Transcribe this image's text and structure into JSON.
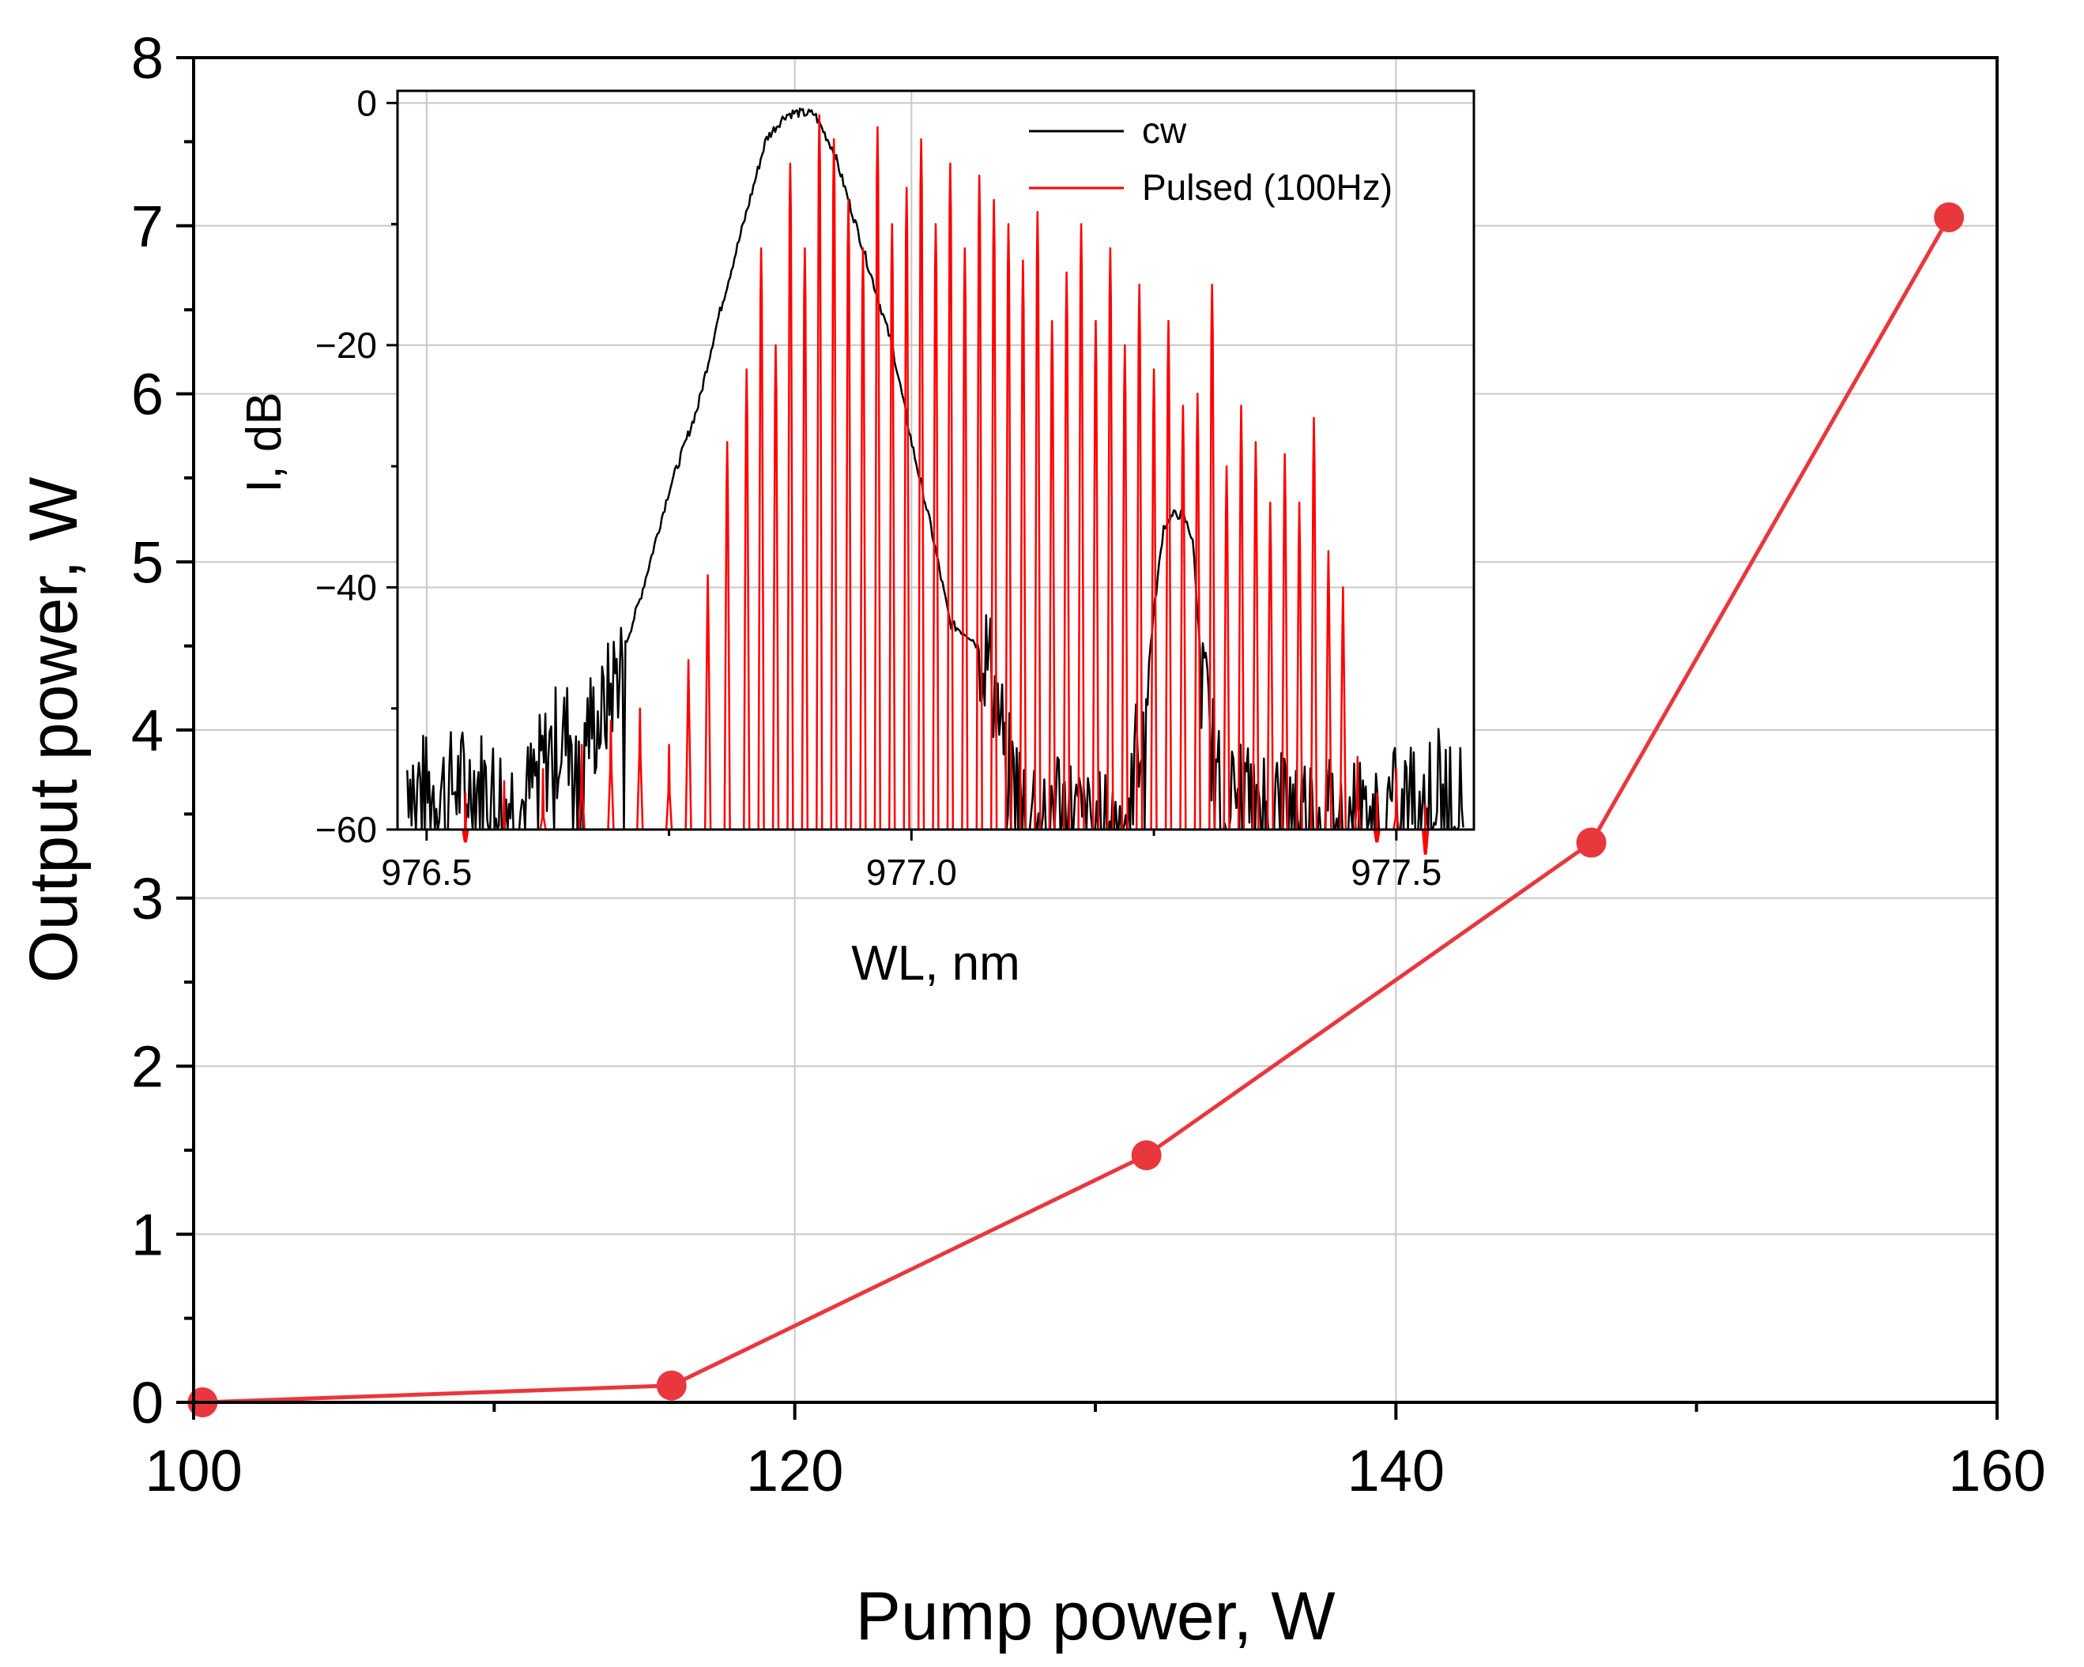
{
  "chart_data": [
    {
      "type": "line",
      "xlabel": "Pump power, W",
      "ylabel": "Output power, W",
      "xlim": [
        100,
        160
      ],
      "ylim": [
        0,
        8
      ],
      "x_ticks": [
        100,
        120,
        140,
        160
      ],
      "y_ticks": [
        0,
        1,
        2,
        3,
        4,
        5,
        6,
        7,
        8
      ],
      "grid": true,
      "series": [
        {
          "name": "Output power",
          "color": "#e8383d",
          "marker": "circle",
          "x": [
            100.3,
            115.9,
            131.7,
            146.5,
            158.4
          ],
          "y": [
            0.0,
            0.1,
            1.47,
            3.33,
            7.05
          ]
        }
      ]
    },
    {
      "type": "line",
      "xlabel": "WL, nm",
      "ylabel": "I, dB",
      "xlim": [
        976.47,
        977.58
      ],
      "ylim": [
        -60,
        1
      ],
      "x_ticks": [
        "976.5",
        "977.0",
        "977.5"
      ],
      "y_ticks": [
        -60,
        -40,
        -20,
        0
      ],
      "grid": true,
      "legend_position": "top-right",
      "series": [
        {
          "name": "cw",
          "color": "#000000",
          "x": [
            976.48,
            976.5,
            976.55,
            976.6,
            976.63,
            976.65,
            976.68,
            976.7,
            976.72,
            976.75,
            976.78,
            976.8,
            976.83,
            976.85,
            976.87,
            976.88,
            976.9,
            976.92,
            976.95,
            976.98,
            977.0,
            977.02,
            977.04,
            977.06,
            977.08,
            977.1,
            977.12,
            977.15,
            977.18,
            977.2,
            977.22,
            977.24,
            977.25,
            977.26,
            977.27,
            977.28,
            977.29,
            977.3,
            977.32,
            977.35,
            977.4,
            977.45,
            977.5,
            977.55,
            977.57
          ],
          "y": [
            -55,
            -57,
            -56,
            -58,
            -53,
            -52,
            -51,
            -46,
            -41,
            -32,
            -25,
            -18,
            -9,
            -3,
            -1,
            -0.8,
            -0.9,
            -4,
            -12,
            -20,
            -28,
            -35,
            -43,
            -44,
            -46,
            -55,
            -58,
            -57,
            -60,
            -60,
            -59,
            -50,
            -42,
            -35,
            -34,
            -34,
            -36,
            -48,
            -58,
            -57,
            -58,
            -59,
            -58,
            -56,
            -58
          ]
        },
        {
          "name": "Pulsed (100Hz)",
          "color": "#ff0000",
          "comb_peaks_nm": [
            976.75,
            976.77,
            976.79,
            976.81,
            976.83,
            976.845,
            976.86,
            976.875,
            976.89,
            976.905,
            976.92,
            976.935,
            976.95,
            976.965,
            976.98,
            976.995,
            977.01,
            977.025,
            977.04,
            977.055,
            977.07,
            977.085,
            977.1,
            977.115,
            977.13,
            977.145,
            977.16,
            977.175,
            977.19,
            977.205,
            977.22,
            977.235,
            977.25,
            977.265,
            977.28,
            977.295,
            977.31,
            977.325,
            977.34,
            977.355,
            977.37,
            977.385,
            977.4,
            977.415,
            977.43,
            977.445
          ],
          "comb_peaks_db": [
            -53,
            -46,
            -39,
            -28,
            -22,
            -12,
            -20,
            -5,
            -12,
            -1,
            -3,
            -8,
            -12,
            -2,
            -10,
            -7,
            -3,
            -10,
            -5,
            -12,
            -6,
            -8,
            -10,
            -13,
            -9,
            -18,
            -14,
            -10,
            -18,
            -12,
            -20,
            -15,
            -22,
            -18,
            -25,
            -24,
            -15,
            -30,
            -25,
            -28,
            -33,
            -29,
            -33,
            -26,
            -37,
            -40
          ]
        }
      ]
    }
  ]
}
